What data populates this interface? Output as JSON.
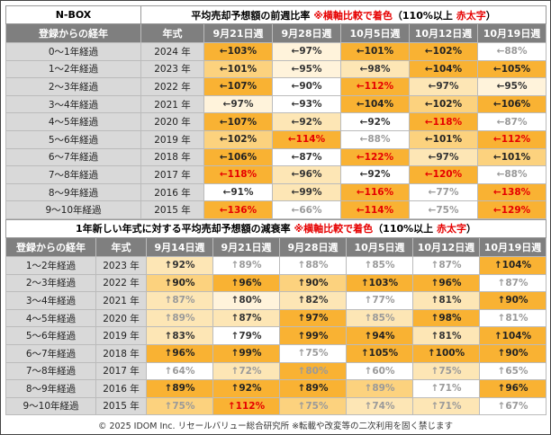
{
  "top": {
    "brand": "N-BOX",
    "title": [
      "平均売却予想額の前週比率 ",
      "※横軸比較で着色",
      "（110%以上 ",
      "赤太字",
      "）"
    ],
    "headers": [
      "登録からの経年",
      "年式",
      "9月21日週",
      "9月28日週",
      "10月5日週",
      "10月12日週",
      "10月19日週"
    ],
    "rows": [
      {
        "label": "0～1年経過",
        "year": "2024 年",
        "cells": [
          "←103%",
          "←97%",
          "←101%",
          "←102%",
          "←88%"
        ],
        "bg": [
          "#f9b233",
          "#fff3db",
          "#f9b233",
          "#f9b233",
          "#ffffff"
        ],
        "fg": [
          "#222222",
          "#333333",
          "#222222",
          "#222222",
          "#9a9a9a"
        ]
      },
      {
        "label": "1～2年経過",
        "year": "2023 年",
        "cells": [
          "←101%",
          "←95%",
          "←98%",
          "←104%",
          "←105%"
        ],
        "bg": [
          "#fcd27e",
          "#fff3db",
          "#fde6b5",
          "#f9b233",
          "#f9b233"
        ],
        "fg": [
          "#222222",
          "#333333",
          "#333333",
          "#222222",
          "#222222"
        ]
      },
      {
        "label": "2～3年経過",
        "year": "2022 年",
        "cells": [
          "←107%",
          "←90%",
          "←112%",
          "←97%",
          "←95%"
        ],
        "bg": [
          "#f9b233",
          "#ffffff",
          "#f9b233",
          "#fde6b5",
          "#fff3db"
        ],
        "fg": [
          "#222222",
          "#333333",
          "#e60000",
          "#333333",
          "#333333"
        ]
      },
      {
        "label": "3～4年経過",
        "year": "2021 年",
        "cells": [
          "←97%",
          "←93%",
          "←104%",
          "←102%",
          "←106%"
        ],
        "bg": [
          "#fff3db",
          "#ffffff",
          "#f9b233",
          "#fcd27e",
          "#f9b233"
        ],
        "fg": [
          "#333333",
          "#333333",
          "#222222",
          "#222222",
          "#222222"
        ]
      },
      {
        "label": "4～5年経過",
        "year": "2020 年",
        "cells": [
          "←107%",
          "←92%",
          "←92%",
          "←118%",
          "←87%"
        ],
        "bg": [
          "#f9b233",
          "#fde6b5",
          "#ffffff",
          "#f9b233",
          "#ffffff"
        ],
        "fg": [
          "#222222",
          "#333333",
          "#333333",
          "#e60000",
          "#9a9a9a"
        ]
      },
      {
        "label": "5～6年経過",
        "year": "2019 年",
        "cells": [
          "←102%",
          "←114%",
          "←88%",
          "←101%",
          "←112%"
        ],
        "bg": [
          "#fcd27e",
          "#f9b233",
          "#ffffff",
          "#fcd27e",
          "#f9b233"
        ],
        "fg": [
          "#222222",
          "#e60000",
          "#9a9a9a",
          "#222222",
          "#e60000"
        ]
      },
      {
        "label": "6～7年経過",
        "year": "2018 年",
        "cells": [
          "←106%",
          "←87%",
          "←122%",
          "←97%",
          "←101%"
        ],
        "bg": [
          "#f9b233",
          "#ffffff",
          "#f9b233",
          "#fde6b5",
          "#fcd27e"
        ],
        "fg": [
          "#222222",
          "#333333",
          "#e60000",
          "#333333",
          "#222222"
        ]
      },
      {
        "label": "7～8年経過",
        "year": "2017 年",
        "cells": [
          "←118%",
          "←96%",
          "←92%",
          "←120%",
          "←88%"
        ],
        "bg": [
          "#f9b233",
          "#fde6b5",
          "#ffffff",
          "#f9b233",
          "#ffffff"
        ],
        "fg": [
          "#e60000",
          "#333333",
          "#333333",
          "#e60000",
          "#9a9a9a"
        ]
      },
      {
        "label": "8～9年経過",
        "year": "2016 年",
        "cells": [
          "←91%",
          "←99%",
          "←116%",
          "←77%",
          "←138%"
        ],
        "bg": [
          "#ffffff",
          "#fde6b5",
          "#f9b233",
          "#ffffff",
          "#f9b233"
        ],
        "fg": [
          "#333333",
          "#333333",
          "#e60000",
          "#9a9a9a",
          "#e60000"
        ]
      },
      {
        "label": "9～10年経過",
        "year": "2015 年",
        "cells": [
          "←136%",
          "←66%",
          "←114%",
          "←75%",
          "←129%"
        ],
        "bg": [
          "#f9b233",
          "#ffffff",
          "#f9b233",
          "#ffffff",
          "#f9b233"
        ],
        "fg": [
          "#e60000",
          "#9a9a9a",
          "#e60000",
          "#9a9a9a",
          "#e60000"
        ]
      }
    ]
  },
  "bottom": {
    "title": [
      "1年新しい年式に対する平均売却予想額の減衰率 ",
      "※横軸比較で着色",
      "（110%以上 ",
      "赤太字",
      "）"
    ],
    "headers": [
      "登録からの経年",
      "年式",
      "9月14日週",
      "9月21日週",
      "9月28日週",
      "10月5日週",
      "10月12日週",
      "10月19日週"
    ],
    "rows": [
      {
        "label": "1～2年経過",
        "year": "2023 年",
        "cells": [
          "↑92%",
          "↑89%",
          "↑88%",
          "↑85%",
          "↑87%",
          "↑104%"
        ],
        "bg": [
          "#fde6b5",
          "#ffffff",
          "#ffffff",
          "#ffffff",
          "#ffffff",
          "#f9b233"
        ],
        "fg": [
          "#333333",
          "#9a9a9a",
          "#9a9a9a",
          "#9a9a9a",
          "#9a9a9a",
          "#222222"
        ]
      },
      {
        "label": "2～3年経過",
        "year": "2022 年",
        "cells": [
          "↑90%",
          "↑96%",
          "↑90%",
          "↑103%",
          "↑96%",
          "↑87%"
        ],
        "bg": [
          "#fcd27e",
          "#f9b233",
          "#fcd27e",
          "#f9b233",
          "#f9b233",
          "#ffffff"
        ],
        "fg": [
          "#222222",
          "#222222",
          "#222222",
          "#222222",
          "#222222",
          "#9a9a9a"
        ]
      },
      {
        "label": "3～4年経過",
        "year": "2021 年",
        "cells": [
          "↑87%",
          "↑80%",
          "↑82%",
          "↑77%",
          "↑81%",
          "↑90%"
        ],
        "bg": [
          "#fde6b5",
          "#fff3db",
          "#fde6b5",
          "#ffffff",
          "#fde6b5",
          "#f9b233"
        ],
        "fg": [
          "#9a9a9a",
          "#333333",
          "#333333",
          "#9a9a9a",
          "#333333",
          "#222222"
        ]
      },
      {
        "label": "4～5年経過",
        "year": "2020 年",
        "cells": [
          "↑89%",
          "↑87%",
          "↑97%",
          "↑85%",
          "↑98%",
          "↑81%"
        ],
        "bg": [
          "#fde6b5",
          "#fde6b5",
          "#f9b233",
          "#fde6b5",
          "#f9b233",
          "#ffffff"
        ],
        "fg": [
          "#9a9a9a",
          "#333333",
          "#222222",
          "#9a9a9a",
          "#222222",
          "#9a9a9a"
        ]
      },
      {
        "label": "5～6年経過",
        "year": "2019 年",
        "cells": [
          "↑83%",
          "↑79%",
          "↑99%",
          "↑94%",
          "↑81%",
          "↑104%"
        ],
        "bg": [
          "#fde6b5",
          "#ffffff",
          "#f9b233",
          "#f9b233",
          "#fde6b5",
          "#f9b233"
        ],
        "fg": [
          "#333333",
          "#333333",
          "#222222",
          "#222222",
          "#333333",
          "#222222"
        ]
      },
      {
        "label": "6～7年経過",
        "year": "2018 年",
        "cells": [
          "↑96%",
          "↑99%",
          "↑75%",
          "↑105%",
          "↑100%",
          "↑90%"
        ],
        "bg": [
          "#f9b233",
          "#f9b233",
          "#ffffff",
          "#f9b233",
          "#f9b233",
          "#f9b233"
        ],
        "fg": [
          "#222222",
          "#222222",
          "#9a9a9a",
          "#222222",
          "#222222",
          "#222222"
        ]
      },
      {
        "label": "7～8年経過",
        "year": "2017 年",
        "cells": [
          "↑64%",
          "↑72%",
          "↑80%",
          "↑60%",
          "↑75%",
          "↑65%"
        ],
        "bg": [
          "#ffffff",
          "#fde6b5",
          "#f9b233",
          "#ffffff",
          "#fde6b5",
          "#ffffff"
        ],
        "fg": [
          "#9a9a9a",
          "#9a9a9a",
          "#9a9a9a",
          "#9a9a9a",
          "#9a9a9a",
          "#9a9a9a"
        ]
      },
      {
        "label": "8～9年経過",
        "year": "2016 年",
        "cells": [
          "↑89%",
          "↑92%",
          "↑89%",
          "↑89%",
          "↑71%",
          "↑96%"
        ],
        "bg": [
          "#f9b233",
          "#f9b233",
          "#f9b233",
          "#fcd27e",
          "#ffffff",
          "#f9b233"
        ],
        "fg": [
          "#222222",
          "#222222",
          "#222222",
          "#9a9a9a",
          "#9a9a9a",
          "#222222"
        ]
      },
      {
        "label": "9～10年経過",
        "year": "2015 年",
        "cells": [
          "↑75%",
          "↑112%",
          "↑75%",
          "↑74%",
          "↑71%",
          "↑67%"
        ],
        "bg": [
          "#fcd27e",
          "#f9b233",
          "#fcd27e",
          "#fde6b5",
          "#fde6b5",
          "#ffffff"
        ],
        "fg": [
          "#9a9a9a",
          "#e60000",
          "#9a9a9a",
          "#9a9a9a",
          "#9a9a9a",
          "#9a9a9a"
        ]
      }
    ]
  },
  "footer": "© 2025 IDOM Inc. リセールバリュー総合研究所 ※転載や改変等の二次利用を固く禁じます"
}
